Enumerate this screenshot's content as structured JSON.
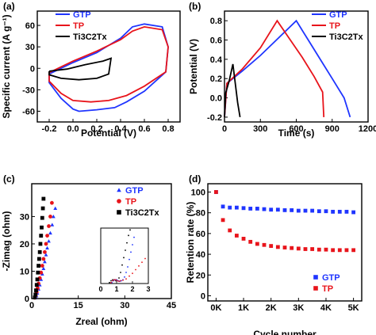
{
  "chart_data": [
    {
      "panel_label": "(a)",
      "type": "line",
      "xlabel": "Potential (V)",
      "ylabel": "Specific current (A g⁻¹)",
      "xlim": [
        -0.3,
        0.9
      ],
      "ylim": [
        -75,
        80
      ],
      "xticks": [
        -0.2,
        0.0,
        0.2,
        0.4,
        0.6,
        0.8
      ],
      "xtick_labels": [
        "-0.2",
        "0.0",
        "0.2",
        "0.4",
        "0.6",
        "0.8"
      ],
      "yticks": [
        -60,
        -30,
        0,
        30,
        60
      ],
      "ytick_labels": [
        "-60",
        "-30",
        "0",
        "30",
        "60"
      ],
      "legend_position": "top-left",
      "series": [
        {
          "name": "GTP",
          "color": "#1f35ff",
          "x": [
            -0.2,
            0.0,
            0.2,
            0.4,
            0.5,
            0.6,
            0.75,
            0.8,
            0.78,
            0.6,
            0.45,
            0.35,
            0.2,
            0.05,
            0.0,
            -0.1,
            -0.2,
            -0.2
          ],
          "y": [
            -8,
            8,
            22,
            42,
            58,
            62,
            58,
            30,
            -5,
            -32,
            -47,
            -55,
            -58,
            -60,
            -57,
            -42,
            -20,
            -8
          ]
        },
        {
          "name": "TP",
          "color": "#e8141b",
          "x": [
            -0.2,
            0.0,
            0.2,
            0.4,
            0.5,
            0.6,
            0.75,
            0.8,
            0.78,
            0.6,
            0.45,
            0.3,
            0.15,
            0.0,
            -0.1,
            -0.2,
            -0.2
          ],
          "y": [
            -6,
            10,
            24,
            40,
            52,
            58,
            54,
            30,
            -5,
            -25,
            -38,
            -45,
            -47,
            -45,
            -35,
            -18,
            -6
          ]
        },
        {
          "name": "Ti3C2Tx",
          "color": "#000000",
          "x": [
            -0.2,
            -0.05,
            0.1,
            0.25,
            0.32,
            0.3,
            0.2,
            0.05,
            -0.1,
            -0.2,
            -0.2
          ],
          "y": [
            -4,
            -1,
            5,
            10,
            14,
            -8,
            -14,
            -16,
            -14,
            -9,
            -4
          ]
        }
      ]
    },
    {
      "panel_label": "(b)",
      "type": "line",
      "xlabel": "Time (s)",
      "ylabel": "Potential (V)",
      "xlim": [
        0,
        1200
      ],
      "ylim": [
        -0.25,
        0.9
      ],
      "xticks": [
        0,
        300,
        600,
        900,
        1200
      ],
      "xtick_labels": [
        "0",
        "300",
        "600",
        "900",
        "1200"
      ],
      "yticks": [
        -0.2,
        0.0,
        0.2,
        0.4,
        0.6,
        0.8
      ],
      "ytick_labels": [
        "-0.2",
        "0.0",
        "0.2",
        "0.4",
        "0.6",
        "0.8"
      ],
      "legend_position": "top-right",
      "series": [
        {
          "name": "GTP",
          "color": "#1f35ff",
          "x": [
            0,
            20,
            150,
            300,
            450,
            600,
            700,
            800,
            900,
            1000,
            1050
          ],
          "y": [
            -0.2,
            0.15,
            0.28,
            0.44,
            0.62,
            0.8,
            0.6,
            0.4,
            0.2,
            0.0,
            -0.2
          ]
        },
        {
          "name": "TP",
          "color": "#e8141b",
          "x": [
            0,
            20,
            150,
            300,
            440,
            550,
            650,
            750,
            820,
            830
          ],
          "y": [
            -0.2,
            0.15,
            0.3,
            0.52,
            0.8,
            0.6,
            0.42,
            0.22,
            0.06,
            -0.2
          ]
        },
        {
          "name": "Ti3C2Tx",
          "color": "#000000",
          "x": [
            0,
            10,
            40,
            70,
            90,
            110,
            130
          ],
          "y": [
            -0.2,
            0.05,
            0.18,
            0.35,
            0.15,
            -0.05,
            -0.2
          ]
        }
      ]
    },
    {
      "panel_label": "(c)",
      "type": "scatter",
      "xlabel": "Zreal (ohm)",
      "ylabel": "-Zimag (ohm)",
      "xlim": [
        0,
        45
      ],
      "ylim": [
        0,
        42
      ],
      "xticks": [
        0,
        15,
        30,
        45
      ],
      "xtick_labels": [
        "0",
        "15",
        "30",
        "45"
      ],
      "yticks": [
        0,
        10,
        20,
        30
      ],
      "ytick_labels": [
        "0",
        "10",
        "20",
        "30"
      ],
      "legend_position": "top-right",
      "series": [
        {
          "name": "GTP",
          "color": "#1f35ff",
          "marker": "triangle",
          "x": [
            1.2,
            1.5,
            1.8,
            2.2,
            2.6,
            3.0,
            3.4,
            3.8,
            4.2,
            4.6,
            5.0,
            5.5,
            6.0,
            6.6,
            7.0,
            7.6
          ],
          "y": [
            0.3,
            1.0,
            2.0,
            3.5,
            5.0,
            7.0,
            9.0,
            11.0,
            13.5,
            16.0,
            18.5,
            21.0,
            24.0,
            27.0,
            30.0,
            33.0
          ]
        },
        {
          "name": "TP",
          "color": "#e8141b",
          "marker": "circle",
          "x": [
            1.0,
            1.3,
            1.6,
            1.9,
            2.2,
            2.6,
            3.0,
            3.4,
            3.8,
            4.2,
            4.6,
            5.0,
            5.5,
            6.0,
            6.5
          ],
          "y": [
            0.3,
            1.2,
            2.4,
            3.8,
            5.5,
            7.5,
            9.5,
            12.0,
            14.5,
            17.0,
            20.0,
            23.0,
            26.5,
            30.0,
            35.0
          ]
        },
        {
          "name": "Ti3C2Tx",
          "color": "#000000",
          "marker": "square",
          "x": [
            1.0,
            1.2,
            1.4,
            1.6,
            1.8,
            2.0,
            2.2,
            2.4,
            2.6,
            2.8,
            3.0,
            3.2,
            3.4,
            3.6,
            3.8
          ],
          "y": [
            0.4,
            1.5,
            3.0,
            5.0,
            7.0,
            9.5,
            12.0,
            14.5,
            17.0,
            20.0,
            23.0,
            26.0,
            29.5,
            33.0,
            36.5
          ]
        }
      ],
      "inset": {
        "xlim": [
          0,
          3
        ],
        "ylim": [
          0,
          3
        ],
        "xticks": [
          0,
          1,
          2,
          3
        ],
        "xtick_labels": [
          "0",
          "1",
          "2",
          "3"
        ],
        "series": [
          {
            "color": "#000000",
            "x": [
              0.55,
              0.65,
              0.75,
              0.85,
              0.95,
              1.05,
              1.15,
              1.25,
              1.35,
              1.45,
              1.55,
              1.65,
              1.75,
              1.85
            ],
            "y": [
              0.05,
              0.15,
              0.2,
              0.2,
              0.15,
              0.15,
              0.3,
              0.6,
              1.0,
              1.4,
              1.8,
              2.2,
              2.6,
              2.9
            ]
          },
          {
            "color": "#1f35ff",
            "x": [
              0.7,
              0.8,
              0.9,
              1.0,
              1.1,
              1.2,
              1.3,
              1.4,
              1.5,
              1.6,
              1.7,
              1.8,
              1.9,
              2.0,
              2.1
            ],
            "y": [
              0.05,
              0.15,
              0.2,
              0.2,
              0.15,
              0.12,
              0.15,
              0.2,
              0.35,
              0.6,
              0.9,
              1.3,
              1.7,
              2.1,
              2.5
            ]
          },
          {
            "color": "#e8141b",
            "x": [
              0.65,
              0.75,
              0.85,
              0.95,
              1.05,
              1.15,
              1.25,
              1.4,
              1.6,
              1.8,
              2.0,
              2.2,
              2.4,
              2.6,
              2.8
            ],
            "y": [
              0.05,
              0.15,
              0.2,
              0.2,
              0.15,
              0.12,
              0.15,
              0.18,
              0.25,
              0.4,
              0.55,
              0.75,
              0.95,
              1.15,
              1.35
            ]
          }
        ]
      }
    },
    {
      "panel_label": "(d)",
      "type": "scatter",
      "xlabel": "Cycle number",
      "ylabel": "Retention rate (%)",
      "xlim": [
        -300,
        5300
      ],
      "ylim": [
        -5,
        108
      ],
      "xticks": [
        0,
        1000,
        2000,
        3000,
        4000,
        5000
      ],
      "xtick_labels": [
        "0K",
        "1K",
        "2K",
        "3K",
        "4K",
        "5K"
      ],
      "yticks": [
        0,
        20,
        40,
        60,
        80,
        100
      ],
      "ytick_labels": [
        "0",
        "20",
        "40",
        "60",
        "80",
        "100"
      ],
      "legend_position": "bottom-right",
      "series": [
        {
          "name": "GTP",
          "color": "#1f35ff",
          "marker": "square",
          "x": [
            0,
            250,
            500,
            750,
            1000,
            1250,
            1500,
            1750,
            2000,
            2250,
            2500,
            2750,
            3000,
            3250,
            3500,
            3750,
            4000,
            4250,
            4500,
            4750,
            5000
          ],
          "y": [
            100,
            86,
            85,
            85,
            84.5,
            84,
            84,
            83.5,
            83,
            83,
            82.5,
            82.5,
            82,
            82,
            82,
            81.5,
            81.5,
            81,
            81,
            81,
            80.5
          ]
        },
        {
          "name": "TP",
          "color": "#e8141b",
          "marker": "square",
          "x": [
            0,
            250,
            500,
            750,
            1000,
            1250,
            1500,
            1750,
            2000,
            2250,
            2500,
            2750,
            3000,
            3250,
            3500,
            3750,
            4000,
            4250,
            4500,
            4750,
            5000
          ],
          "y": [
            100,
            73,
            63,
            58,
            55,
            52,
            50,
            49,
            48,
            47,
            46.5,
            46,
            45.5,
            45,
            45,
            44.5,
            44.5,
            44,
            44,
            44,
            44
          ]
        }
      ]
    }
  ]
}
